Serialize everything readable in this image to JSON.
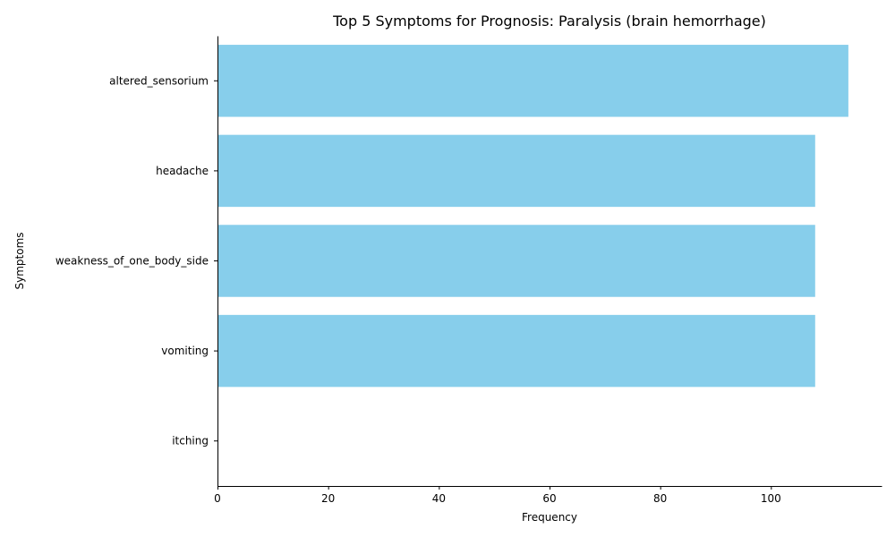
{
  "chart_data": {
    "type": "bar",
    "orientation": "horizontal",
    "title": "Top 5 Symptoms for Prognosis: Paralysis (brain hemorrhage)",
    "xlabel": "Frequency",
    "ylabel": "Symptoms",
    "categories": [
      "altered_sensorium",
      "headache",
      "weakness_of_one_body_side",
      "vomiting",
      "itching"
    ],
    "values": [
      114,
      108,
      108,
      108,
      0
    ],
    "xlim": [
      0,
      120
    ],
    "xticks": [
      0,
      20,
      40,
      60,
      80,
      100
    ],
    "bar_color": "#87ceeb",
    "grid": false,
    "legend": "none"
  }
}
